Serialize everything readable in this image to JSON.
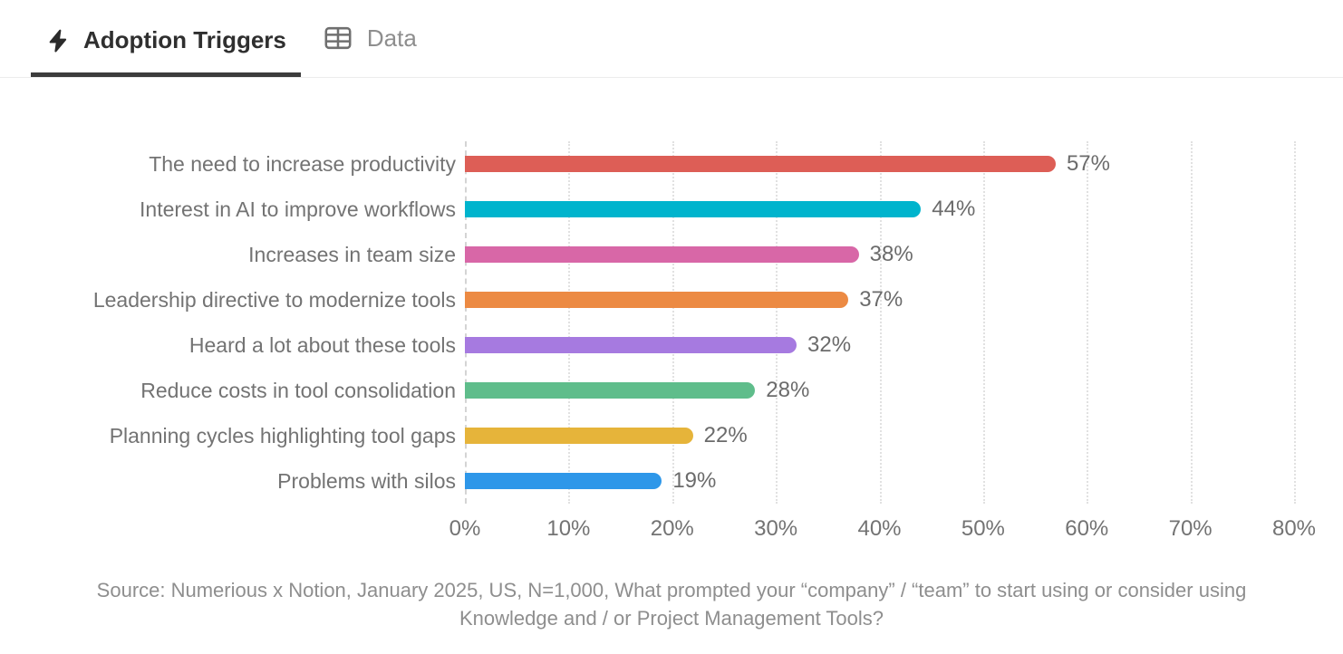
{
  "header": {
    "tabs": [
      {
        "label": "Adoption Triggers",
        "icon": "lightning-bolt-icon",
        "active": true
      },
      {
        "label": "Data",
        "icon": "table-icon",
        "active": false
      }
    ]
  },
  "chart_data": {
    "type": "bar",
    "orientation": "horizontal",
    "title": "Adoption Triggers",
    "categories": [
      "The need to increase productivity",
      "Interest in AI to improve workflows",
      "Increases in team size",
      "Leadership directive to modernize tools",
      "Heard a lot about these tools",
      "Reduce costs in tool consolidation",
      "Planning cycles highlighting tool gaps",
      "Problems with silos"
    ],
    "values": [
      57,
      44,
      38,
      37,
      32,
      28,
      22,
      19
    ],
    "value_labels": [
      "57%",
      "44%",
      "38%",
      "37%",
      "32%",
      "28%",
      "22%",
      "19%"
    ],
    "bar_colors": [
      "#dd5e56",
      "#00b4cd",
      "#d867a7",
      "#ec8a43",
      "#a67ae0",
      "#5fbd8b",
      "#e6b43a",
      "#2e97e9"
    ],
    "xlabel": "",
    "ylabel": "",
    "xlim": [
      0,
      80
    ],
    "x_ticks": [
      0,
      10,
      20,
      30,
      40,
      50,
      60,
      70,
      80
    ],
    "x_tick_labels": [
      "0%",
      "10%",
      "20%",
      "30%",
      "40%",
      "50%",
      "60%",
      "70%",
      "80%"
    ],
    "grid": "vertical-dotted",
    "legend": "none",
    "label_color": "#737373",
    "value_label_color": "#6b6b6b",
    "source": "Source: Numerious x Notion, January 2025, US, N=1,000, What prompted your “company” / “team” to start using or consider using Knowledge and / or Project Management Tools?"
  }
}
